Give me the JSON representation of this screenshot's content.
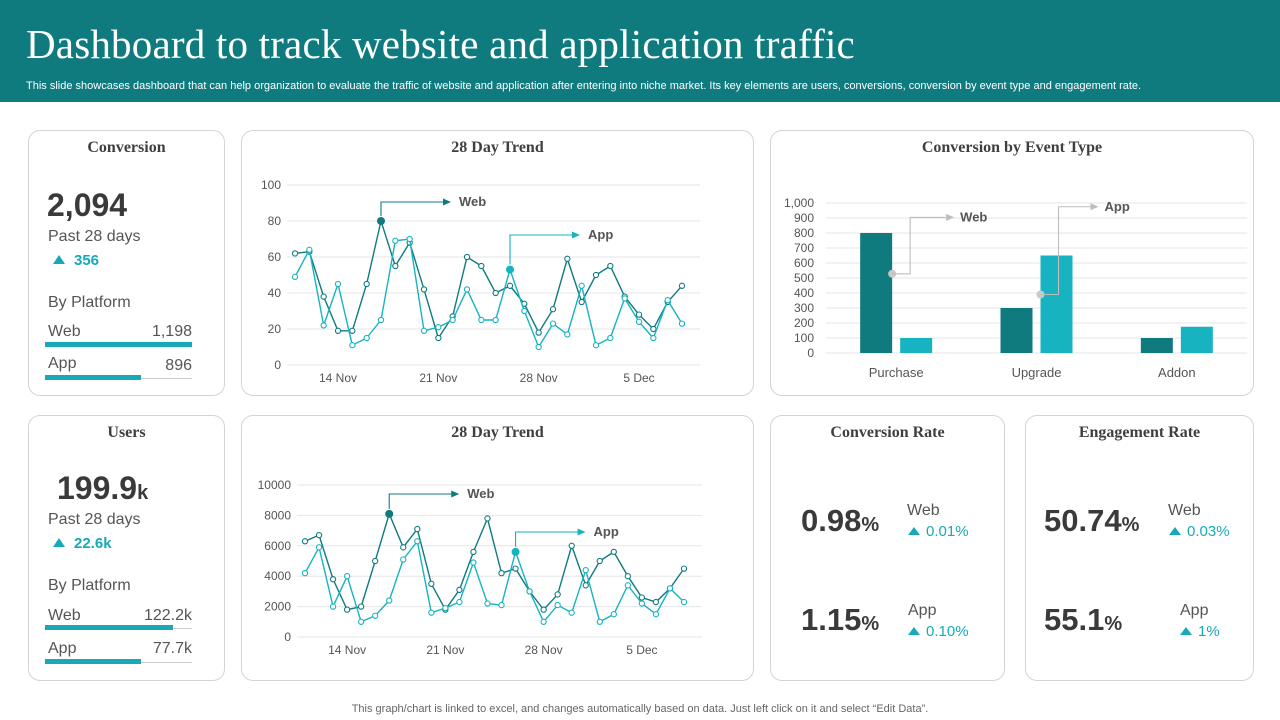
{
  "header": {
    "title": "Dashboard to track website and application traffic",
    "subtitle": "This slide showcases dashboard that can help organization to evaluate the traffic of website and application after entering into niche market. Its key elements are users, conversions, conversion by event type and engagement rate."
  },
  "conversion": {
    "title": "Conversion",
    "value": "2,094",
    "period": "Past 28 days",
    "delta": "356",
    "by_platform_label": "By Platform",
    "platforms": [
      {
        "name": "Web",
        "value": "1,198",
        "share": 1.0
      },
      {
        "name": "App",
        "value": "896",
        "share": 0.65
      }
    ]
  },
  "users": {
    "title": "Users",
    "value": "199.9",
    "unit": "k",
    "period": "Past 28 days",
    "delta": "22.6k",
    "by_platform_label": "By Platform",
    "platforms": [
      {
        "name": "Web",
        "value": "122.2k",
        "share": 0.87
      },
      {
        "name": "App",
        "value": "77.7k",
        "share": 0.65
      }
    ]
  },
  "conversion_rate": {
    "title": "Conversion Rate",
    "items": [
      {
        "value": "0.98",
        "unit": "%",
        "label": "Web",
        "delta": "0.01%"
      },
      {
        "value": "1.15",
        "unit": "%",
        "label": "App",
        "delta": "0.10%"
      }
    ]
  },
  "engagement_rate": {
    "title": "Engagement Rate",
    "items": [
      {
        "value": "50.74",
        "unit": "%",
        "label": "Web",
        "delta": "0.03%"
      },
      {
        "value": "55.1",
        "unit": "%",
        "label": "App",
        "delta": "1%"
      }
    ]
  },
  "colors": {
    "web": "#0f7b7f",
    "app": "#17b3c1",
    "header": "#0f7b7f",
    "accent": "#17a9b8"
  },
  "chart_data": [
    {
      "id": "trend-conversion",
      "type": "line",
      "title": "28 Day Trend",
      "x": [
        1,
        2,
        3,
        4,
        5,
        6,
        7,
        8,
        9,
        10,
        11,
        12,
        13,
        14,
        15,
        16,
        17,
        18,
        19,
        20,
        21,
        22,
        23,
        24,
        25,
        26,
        27,
        28
      ],
      "x_tick_labels": [
        {
          "x": 4,
          "label": "14 Nov"
        },
        {
          "x": 11,
          "label": "21 Nov"
        },
        {
          "x": 18,
          "label": "28 Nov"
        },
        {
          "x": 25,
          "label": "5 Dec"
        }
      ],
      "ylim": [
        0,
        100
      ],
      "yticks": [
        0,
        20,
        40,
        60,
        80,
        100
      ],
      "grid": true,
      "series": [
        {
          "name": "Web",
          "values": [
            62,
            63,
            38,
            19,
            19,
            45,
            80,
            55,
            68,
            42,
            15,
            27,
            60,
            55,
            40,
            44,
            34,
            18,
            31,
            59,
            35,
            50,
            55,
            38,
            28,
            20,
            35,
            44
          ],
          "highlight_index": 6
        },
        {
          "name": "App",
          "values": [
            49,
            64,
            22,
            45,
            11,
            15,
            25,
            69,
            70,
            19,
            21,
            25,
            42,
            25,
            25,
            53,
            30,
            10,
            23,
            17,
            44,
            11,
            15,
            37,
            24,
            15,
            36,
            23
          ],
          "highlight_index": 15
        }
      ]
    },
    {
      "id": "conversion-by-event",
      "type": "bar",
      "title": "Conversion by Event Type",
      "categories": [
        "Purchase",
        "Upgrade",
        "Addon"
      ],
      "series": [
        {
          "name": "Web",
          "values": [
            800,
            300,
            100
          ]
        },
        {
          "name": "App",
          "values": [
            100,
            650,
            175
          ]
        }
      ],
      "ylim": [
        0,
        1000
      ],
      "yticks": [
        0,
        100,
        200,
        300,
        400,
        500,
        600,
        700,
        800,
        900,
        1000
      ],
      "ytick_labels": [
        "0",
        "100",
        "200",
        "300",
        "400",
        "500",
        "600",
        "700",
        "800",
        "900",
        "1,000"
      ],
      "grid": true,
      "legend": "callouts"
    },
    {
      "id": "trend-users",
      "type": "line",
      "title": "28 Day Trend",
      "x": [
        1,
        2,
        3,
        4,
        5,
        6,
        7,
        8,
        9,
        10,
        11,
        12,
        13,
        14,
        15,
        16,
        17,
        18,
        19,
        20,
        21,
        22,
        23,
        24,
        25,
        26,
        27,
        28
      ],
      "x_tick_labels": [
        {
          "x": 4,
          "label": "14 Nov"
        },
        {
          "x": 11,
          "label": "21 Nov"
        },
        {
          "x": 18,
          "label": "28 Nov"
        },
        {
          "x": 25,
          "label": "5 Dec"
        }
      ],
      "ylim": [
        0,
        10000
      ],
      "yticks": [
        0,
        2000,
        4000,
        6000,
        8000,
        10000
      ],
      "grid": true,
      "series": [
        {
          "name": "Web",
          "values": [
            6300,
            6700,
            3800,
            1800,
            2000,
            5000,
            8100,
            5900,
            7100,
            3500,
            1800,
            3100,
            5600,
            7800,
            4200,
            4500,
            3000,
            1800,
            2800,
            6000,
            3400,
            5000,
            5600,
            4000,
            2600,
            2300,
            3200,
            4500
          ],
          "highlight_index": 6
        },
        {
          "name": "App",
          "values": [
            4200,
            5900,
            2000,
            4000,
            1000,
            1400,
            2400,
            5100,
            6300,
            1600,
            1900,
            2300,
            4900,
            2200,
            2100,
            5600,
            3000,
            1000,
            2100,
            1600,
            4400,
            1000,
            1500,
            3400,
            2200,
            1500,
            3200,
            2300
          ],
          "highlight_index": 15
        }
      ]
    }
  ],
  "footer": {
    "note": "This graph/chart is linked to excel,  and changes automatically based on data. Just left click on it and select “Edit Data”."
  }
}
